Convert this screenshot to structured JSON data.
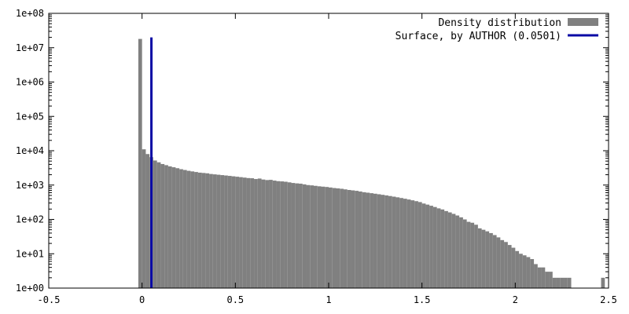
{
  "chart_data": {
    "type": "bar",
    "title": "",
    "xlabel": "",
    "ylabel": "",
    "y_scale": "log",
    "xlim": [
      -0.5,
      2.5
    ],
    "ylim": [
      1,
      100000000
    ],
    "x_ticks": [
      -0.5,
      0,
      0.5,
      1,
      1.5,
      2,
      2.5
    ],
    "x_tick_labels": [
      "-0.5",
      "0",
      "0.5",
      "1",
      "1.5",
      "2",
      "2.5"
    ],
    "y_ticks": [
      1,
      10,
      100,
      1000,
      10000,
      100000,
      1000000,
      10000000,
      100000000
    ],
    "y_tick_labels": [
      "1e+00",
      "1e+01",
      "1e+02",
      "1e+03",
      "1e+04",
      "1e+05",
      "1e+06",
      "1e+07",
      "1e+08"
    ],
    "grid": false,
    "legend_position": "top-right",
    "series": [
      {
        "name": "Density distribution",
        "kind": "histogram",
        "color": "#808080",
        "bin_width": 0.02,
        "bin_start": -0.02,
        "values": [
          18000000,
          11000,
          8000,
          6500,
          5200,
          4600,
          4100,
          3800,
          3500,
          3300,
          3100,
          2900,
          2750,
          2600,
          2500,
          2400,
          2300,
          2250,
          2200,
          2100,
          2050,
          2000,
          1950,
          1900,
          1850,
          1800,
          1750,
          1700,
          1650,
          1600,
          1580,
          1500,
          1550,
          1450,
          1400,
          1420,
          1350,
          1300,
          1280,
          1250,
          1200,
          1150,
          1120,
          1100,
          1050,
          1000,
          980,
          950,
          920,
          900,
          880,
          850,
          820,
          800,
          780,
          750,
          720,
          700,
          680,
          650,
          620,
          600,
          580,
          560,
          540,
          520,
          500,
          480,
          460,
          440,
          420,
          400,
          380,
          360,
          340,
          320,
          290,
          270,
          250,
          230,
          210,
          195,
          175,
          160,
          145,
          130,
          115,
          100,
          85,
          80,
          70,
          55,
          50,
          45,
          40,
          35,
          30,
          25,
          22,
          18,
          15,
          12,
          10,
          9,
          8,
          7,
          5,
          4,
          4,
          3,
          3,
          2,
          2,
          2,
          2,
          2,
          0,
          0,
          0,
          0,
          0,
          0,
          0,
          0,
          2,
          1
        ]
      },
      {
        "name": "Surface, by AUTHOR (0.0501)",
        "kind": "vline",
        "color": "#0a0aa5",
        "x": 0.0501,
        "y_top": 20000000
      }
    ]
  }
}
